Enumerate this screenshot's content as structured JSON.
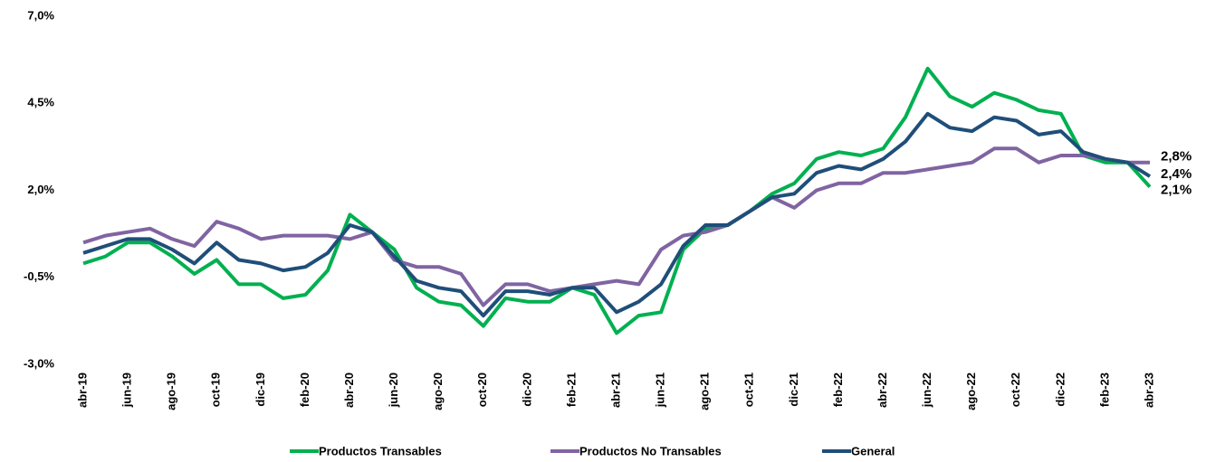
{
  "chart_data": {
    "type": "line",
    "categories": [
      "abr-19",
      null,
      "jun-19",
      null,
      "ago-19",
      null,
      "oct-19",
      null,
      "dic-19",
      null,
      "feb-20",
      null,
      "abr-20",
      null,
      "jun-20",
      null,
      "ago-20",
      null,
      "oct-20",
      null,
      "dic-20",
      null,
      "feb-21",
      null,
      "abr-21",
      null,
      "jun-21",
      null,
      "ago-21",
      null,
      "oct-21",
      null,
      "dic-21",
      null,
      "feb-22",
      null,
      "abr-22",
      null,
      "jun-22",
      null,
      "ago-22",
      null,
      "oct-22",
      null,
      "dic-22",
      null,
      "feb-23",
      null,
      "abr-23"
    ],
    "series": [
      {
        "name": "Productos Transables",
        "color": "#00b050",
        "values": [
          -0.1,
          0.1,
          0.5,
          0.5,
          0.1,
          -0.4,
          0.0,
          -0.7,
          -0.7,
          -1.1,
          -1.0,
          -0.3,
          1.3,
          0.8,
          0.3,
          -0.8,
          -1.2,
          -1.3,
          -1.9,
          -1.1,
          -1.2,
          -1.2,
          -0.8,
          -1.0,
          -2.1,
          -1.6,
          -1.5,
          0.3,
          0.9,
          1.0,
          1.4,
          1.9,
          2.2,
          2.9,
          3.1,
          3.0,
          3.2,
          4.1,
          5.5,
          4.7,
          4.4,
          4.8,
          4.6,
          4.3,
          4.2,
          3.0,
          2.8,
          2.8,
          2.1
        ],
        "value_labels": [
          null,
          null,
          null,
          null,
          null,
          null,
          null,
          null,
          null,
          null,
          null,
          null,
          null,
          null,
          null,
          null,
          null,
          null,
          null,
          null,
          null,
          null,
          null,
          null,
          null,
          null,
          null,
          null,
          null,
          null,
          null,
          null,
          null,
          null,
          null,
          null,
          null,
          null,
          null,
          null,
          null,
          null,
          null,
          null,
          null,
          null,
          null,
          null,
          "2,1%"
        ]
      },
      {
        "name": "Productos No Transables",
        "color": "#8064a2",
        "values": [
          0.5,
          0.7,
          0.8,
          0.9,
          0.6,
          0.4,
          1.1,
          0.9,
          0.6,
          0.7,
          0.7,
          0.7,
          0.6,
          0.8,
          0.0,
          -0.2,
          -0.2,
          -0.4,
          -1.3,
          -0.7,
          -0.7,
          -0.9,
          -0.8,
          -0.7,
          -0.6,
          -0.7,
          0.3,
          0.7,
          0.8,
          1.0,
          1.4,
          1.8,
          1.5,
          2.0,
          2.2,
          2.2,
          2.5,
          2.5,
          2.6,
          2.7,
          2.8,
          3.2,
          3.2,
          2.8,
          3.0,
          3.0,
          2.9,
          2.8,
          2.8
        ],
        "value_labels": [
          null,
          null,
          null,
          null,
          null,
          null,
          null,
          null,
          null,
          null,
          null,
          null,
          null,
          null,
          null,
          null,
          null,
          null,
          null,
          null,
          null,
          null,
          null,
          null,
          null,
          null,
          null,
          null,
          null,
          null,
          null,
          null,
          null,
          null,
          null,
          null,
          null,
          null,
          null,
          null,
          null,
          null,
          null,
          null,
          null,
          null,
          null,
          null,
          "2,8%"
        ]
      },
      {
        "name": "General",
        "color": "#1f4e79",
        "values": [
          0.2,
          0.4,
          0.6,
          0.6,
          0.3,
          -0.1,
          0.5,
          0.0,
          -0.1,
          -0.3,
          -0.2,
          0.2,
          1.0,
          0.8,
          0.1,
          -0.6,
          -0.8,
          -0.9,
          -1.6,
          -0.9,
          -0.9,
          -1.0,
          -0.8,
          -0.8,
          -1.5,
          -1.2,
          -0.7,
          0.4,
          1.0,
          1.0,
          1.4,
          1.8,
          1.9,
          2.5,
          2.7,
          2.6,
          2.9,
          3.4,
          4.2,
          3.8,
          3.7,
          4.1,
          4.0,
          3.6,
          3.7,
          3.1,
          2.9,
          2.8,
          2.4
        ],
        "value_labels": [
          null,
          null,
          null,
          null,
          null,
          null,
          null,
          null,
          null,
          null,
          null,
          null,
          null,
          null,
          null,
          null,
          null,
          null,
          null,
          null,
          null,
          null,
          null,
          null,
          null,
          null,
          null,
          null,
          null,
          null,
          null,
          null,
          null,
          null,
          null,
          null,
          null,
          null,
          null,
          null,
          null,
          null,
          null,
          null,
          null,
          null,
          null,
          null,
          "2,4%"
        ]
      }
    ],
    "ylim": [
      -3.0,
      7.0
    ],
    "yticks": [
      {
        "value": -3.0,
        "label": "-3,0%"
      },
      {
        "value": -0.5,
        "label": "-0,5%"
      },
      {
        "value": 2.0,
        "label": "2,0%"
      },
      {
        "value": 4.5,
        "label": "4,5%"
      },
      {
        "value": 7.0,
        "label": "7,0%"
      }
    ],
    "grid": false,
    "legend": "bottom"
  }
}
